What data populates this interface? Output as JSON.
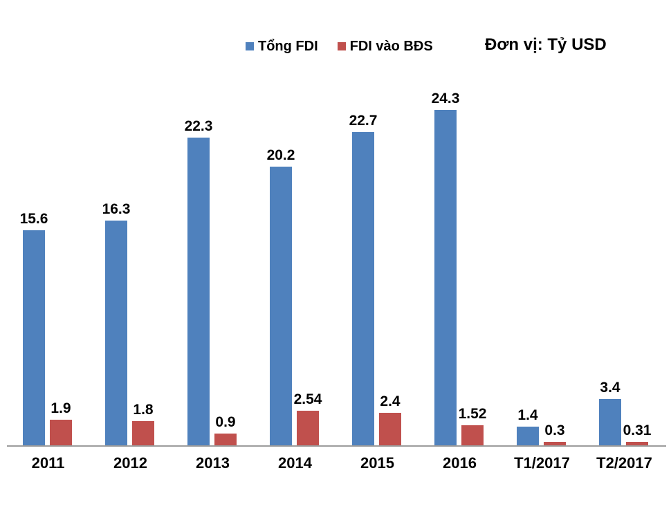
{
  "legend": {
    "items": [
      {
        "label": "Tổng FDI",
        "color": "#4F81BD"
      },
      {
        "label": "FDI vào BĐS",
        "color": "#C0504D"
      }
    ]
  },
  "unit_label": "Đơn vị: Tỷ USD",
  "chart_data": {
    "type": "bar",
    "title": "",
    "xlabel": "",
    "ylabel": "",
    "unit": "Tỷ USD",
    "grid": false,
    "y_axis_visible": false,
    "legend_position": "top",
    "data_labels": true,
    "categories": [
      "2011",
      "2012",
      "2013",
      "2014",
      "2015",
      "2016",
      "T1/2017",
      "T2/2017"
    ],
    "series": [
      {
        "name": "Tổng FDI",
        "color": "#4F81BD",
        "values": [
          15.6,
          16.3,
          22.3,
          20.2,
          22.7,
          24.3,
          1.4,
          3.4
        ]
      },
      {
        "name": "FDI vào BĐS",
        "color": "#C0504D",
        "values": [
          1.9,
          1.8,
          0.9,
          2.54,
          2.4,
          1.52,
          0.3,
          0.31
        ]
      }
    ],
    "colors": {
      "axis_line": "#9c9c9c",
      "label_text": "#000000"
    }
  }
}
